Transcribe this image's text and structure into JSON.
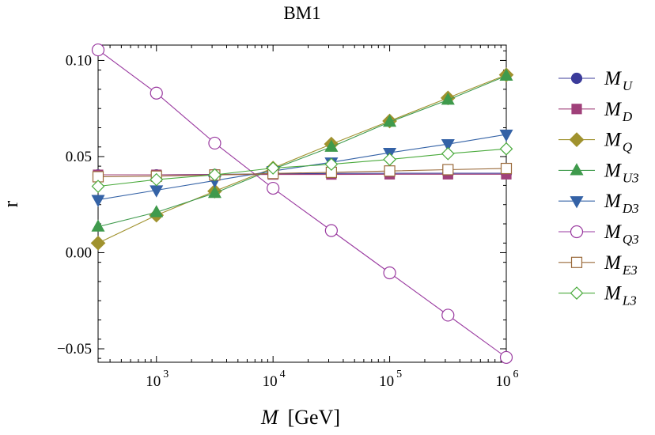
{
  "chart_data": {
    "type": "line",
    "title": "BM1",
    "xlabel_var": "M",
    "xlabel_unit": "[GeV]",
    "ylabel": "r",
    "x_scale": "log",
    "xlim": [
      316,
      1000000
    ],
    "ylim": [
      -0.057,
      0.108
    ],
    "x_ticks": [
      {
        "value": 1000,
        "base": "10",
        "exp": "3"
      },
      {
        "value": 10000,
        "base": "10",
        "exp": "4"
      },
      {
        "value": 100000,
        "base": "10",
        "exp": "5"
      },
      {
        "value": 1000000,
        "base": "10",
        "exp": "6"
      }
    ],
    "y_ticks": [
      {
        "value": -0.05,
        "label": "−0.05"
      },
      {
        "value": 0.0,
        "label": "0.00"
      },
      {
        "value": 0.05,
        "label": "0.05"
      },
      {
        "value": 0.1,
        "label": "0.10"
      }
    ],
    "grid": false,
    "legend_position": "right",
    "x": [
      316,
      1000,
      3162,
      10000,
      31623,
      100000,
      316228,
      1000000
    ],
    "series": [
      {
        "name": "M",
        "sub": "U",
        "color": "#3b3b9a",
        "marker": "circle-filled",
        "values": [
          0.0405,
          0.0405,
          0.0407,
          0.041,
          0.0412,
          0.0413,
          0.0413,
          0.0413
        ]
      },
      {
        "name": "M",
        "sub": "D",
        "color": "#a0407a",
        "marker": "square-filled",
        "values": [
          0.0405,
          0.0405,
          0.0406,
          0.0407,
          0.0407,
          0.0408,
          0.0408,
          0.0408
        ]
      },
      {
        "name": "M",
        "sub": "Q",
        "color": "#a0922e",
        "marker": "diamond-filled",
        "values": [
          0.005,
          0.0195,
          0.032,
          0.044,
          0.0565,
          0.0685,
          0.0805,
          0.0925
        ]
      },
      {
        "name": "M",
        "sub": "U3",
        "color": "#3f9a4c",
        "marker": "triangle-up-filled",
        "values": [
          0.0135,
          0.021,
          0.031,
          0.0435,
          0.055,
          0.068,
          0.0795,
          0.092
        ]
      },
      {
        "name": "M",
        "sub": "D3",
        "color": "#3462a6",
        "marker": "triangle-down-filled",
        "values": [
          0.0275,
          0.0325,
          0.0375,
          0.0425,
          0.047,
          0.052,
          0.0565,
          0.0615
        ]
      },
      {
        "name": "M",
        "sub": "Q3",
        "color": "#9a3aa0",
        "marker": "circle-open",
        "values": [
          0.1055,
          0.083,
          0.057,
          0.0335,
          0.0115,
          -0.0105,
          -0.0325,
          -0.0545
        ]
      },
      {
        "name": "M",
        "sub": "E3",
        "color": "#9a6a3a",
        "marker": "square-open",
        "values": [
          0.0395,
          0.0398,
          0.0404,
          0.0412,
          0.0418,
          0.0425,
          0.0432,
          0.0438
        ]
      },
      {
        "name": "M",
        "sub": "L3",
        "color": "#4aaa3c",
        "marker": "diamond-open",
        "values": [
          0.0345,
          0.038,
          0.0405,
          0.044,
          0.046,
          0.0485,
          0.0515,
          0.054
        ]
      }
    ]
  }
}
